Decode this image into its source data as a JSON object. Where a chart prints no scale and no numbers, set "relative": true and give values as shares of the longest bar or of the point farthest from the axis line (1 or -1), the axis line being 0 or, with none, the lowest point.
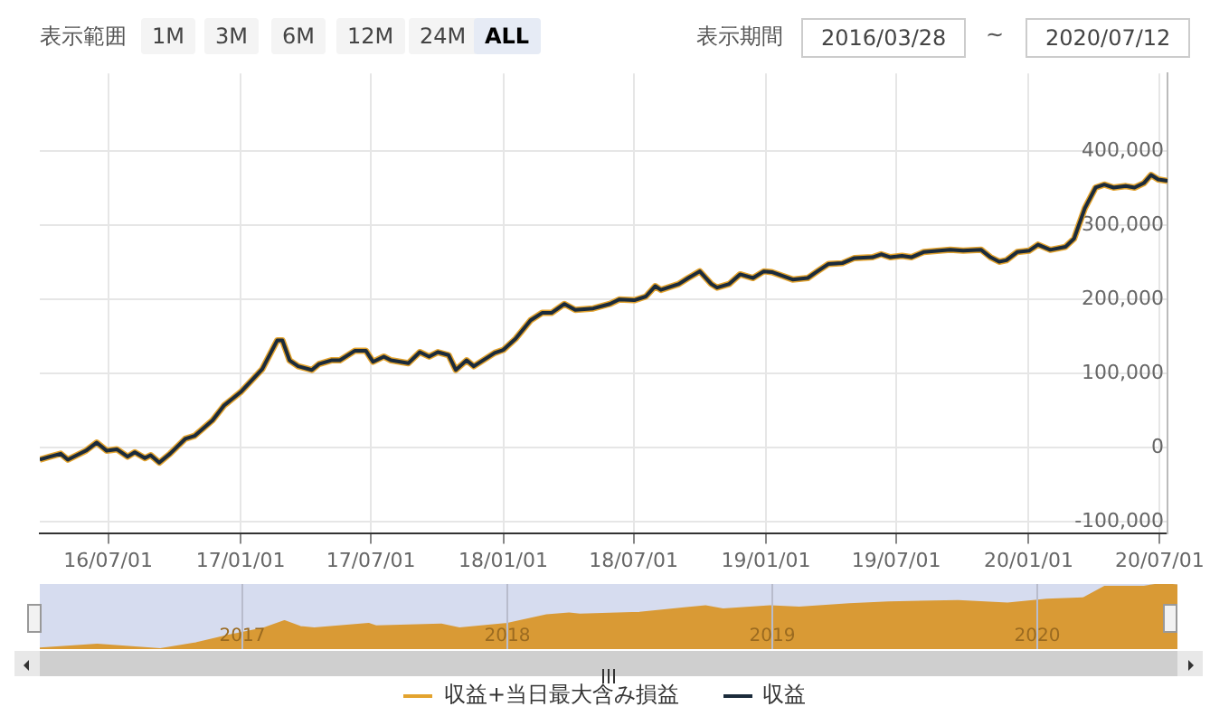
{
  "chart_data": [
    {
      "type": "line",
      "annotations": [
        "表示範囲",
        "1M",
        "3M",
        "6M",
        "12M",
        "24M",
        "ALL",
        "表示期間",
        "2016/03/28",
        "~",
        "2020/07/12"
      ],
      "x": [
        "2016-03-28",
        "2016-04-11",
        "2016-04-26",
        "2016-05-06",
        "2016-05-31",
        "2016-06-15",
        "2016-06-29",
        "2016-07-13",
        "2016-07-28",
        "2016-08-07",
        "2016-08-21",
        "2016-08-29",
        "2016-09-10",
        "2016-09-25",
        "2016-10-16",
        "2016-10-29",
        "2016-11-23",
        "2016-12-09",
        "2017-01-01",
        "2017-01-31",
        "2017-02-21",
        "2017-02-28",
        "2017-03-10",
        "2017-03-22",
        "2017-04-10",
        "2017-04-20",
        "2017-05-07",
        "2017-05-19",
        "2017-06-09",
        "2017-06-24",
        "2017-07-04",
        "2017-07-19",
        "2017-07-29",
        "2017-08-22",
        "2017-09-07",
        "2017-09-20",
        "2017-10-02",
        "2017-10-17",
        "2017-10-27",
        "2017-11-11",
        "2017-11-21",
        "2017-12-20",
        "2018-01-01",
        "2018-01-18",
        "2018-02-08",
        "2018-02-24",
        "2018-03-09",
        "2018-03-27",
        "2018-04-11",
        "2018-05-06",
        "2018-05-29",
        "2018-06-11",
        "2018-07-02",
        "2018-07-18",
        "2018-07-31",
        "2018-08-08",
        "2018-09-02",
        "2018-09-15",
        "2018-10-01",
        "2018-10-17",
        "2018-10-25",
        "2018-11-11",
        "2018-11-26",
        "2018-12-14",
        "2018-12-29",
        "2019-01-09",
        "2019-02-07",
        "2019-02-28",
        "2019-03-12",
        "2019-03-29",
        "2019-04-17",
        "2019-05-04",
        "2019-05-29",
        "2019-06-10",
        "2019-06-23",
        "2019-07-09",
        "2019-07-22",
        "2019-08-08",
        "2019-09-14",
        "2019-10-02",
        "2019-10-27",
        "2019-11-09",
        "2019-11-21",
        "2019-12-01",
        "2019-12-16",
        "2020-01-02",
        "2020-01-14",
        "2020-01-31",
        "2020-02-21",
        "2020-03-04",
        "2020-03-19",
        "2020-04-03",
        "2020-04-15",
        "2020-04-28",
        "2020-05-15",
        "2020-05-27",
        "2020-06-09",
        "2020-06-19",
        "2020-06-29",
        "2020-07-12"
      ],
      "series": [
        {
          "name": "収益+当日最大含み損益",
          "color": "#e3a32e",
          "values": [
            -16000,
            -12000,
            -8000,
            -16000,
            -4000,
            7000,
            -4000,
            -2000,
            -12000,
            -6000,
            -14000,
            -10000,
            -20000,
            -8000,
            12000,
            16000,
            37000,
            57000,
            75000,
            106000,
            145000,
            145000,
            118000,
            110000,
            105000,
            113000,
            118000,
            118000,
            131000,
            131000,
            116000,
            123000,
            118000,
            114000,
            129000,
            123000,
            129000,
            125000,
            105000,
            118000,
            110000,
            128000,
            132000,
            147000,
            172000,
            182000,
            182000,
            194000,
            186000,
            188000,
            194000,
            200000,
            199000,
            204000,
            218000,
            213000,
            221000,
            229000,
            238000,
            221000,
            216000,
            221000,
            234000,
            229000,
            238000,
            237000,
            227000,
            229000,
            237000,
            248000,
            249000,
            256000,
            257000,
            261000,
            257000,
            259000,
            257000,
            264000,
            267000,
            266000,
            267000,
            257000,
            251000,
            253000,
            264000,
            266000,
            274000,
            267000,
            271000,
            282000,
            323000,
            351000,
            355000,
            351000,
            353000,
            351000,
            357000,
            368000,
            362000,
            360000
          ]
        },
        {
          "name": "収益",
          "color": "#1b2b3b",
          "values": [
            -16000,
            -12000,
            -8000,
            -16000,
            -4000,
            7000,
            -4000,
            -2000,
            -12000,
            -6000,
            -14000,
            -10000,
            -20000,
            -8000,
            12000,
            16000,
            37000,
            57000,
            75000,
            106000,
            145000,
            145000,
            118000,
            110000,
            105000,
            113000,
            118000,
            118000,
            131000,
            131000,
            116000,
            123000,
            118000,
            114000,
            129000,
            123000,
            129000,
            125000,
            105000,
            118000,
            110000,
            128000,
            132000,
            147000,
            172000,
            182000,
            182000,
            194000,
            186000,
            188000,
            194000,
            200000,
            199000,
            204000,
            218000,
            213000,
            221000,
            229000,
            238000,
            221000,
            216000,
            221000,
            234000,
            229000,
            238000,
            237000,
            227000,
            229000,
            237000,
            248000,
            249000,
            256000,
            257000,
            261000,
            257000,
            259000,
            257000,
            264000,
            267000,
            266000,
            267000,
            257000,
            251000,
            253000,
            264000,
            266000,
            274000,
            267000,
            271000,
            282000,
            323000,
            351000,
            355000,
            351000,
            353000,
            351000,
            357000,
            368000,
            362000,
            360000
          ]
        }
      ],
      "xlim": [
        "2016-03-28",
        "2020-07-12"
      ],
      "xticks": [
        {
          "value": "2016-07-01",
          "label": "16/07/01"
        },
        {
          "value": "2017-01-01",
          "label": "17/01/01"
        },
        {
          "value": "2017-07-01",
          "label": "17/07/01"
        },
        {
          "value": "2018-01-01",
          "label": "18/01/01"
        },
        {
          "value": "2018-07-01",
          "label": "18/07/01"
        },
        {
          "value": "2019-01-01",
          "label": "19/01/01"
        },
        {
          "value": "2019-07-01",
          "label": "19/07/01"
        },
        {
          "value": "2020-01-01",
          "label": "20/01/01"
        },
        {
          "value": "2020-07-01",
          "label": "20/07/01"
        }
      ],
      "ylim": [
        -115000,
        505000
      ],
      "yticks": [
        {
          "value": -100000,
          "label": "-100,000"
        },
        0,
        {
          "value": 100000,
          "label": "100,000"
        },
        {
          "value": 200000,
          "label": "200,000"
        },
        {
          "value": 300000,
          "label": "300,000"
        },
        {
          "value": 400000,
          "label": "400,000"
        }
      ],
      "grid": true,
      "legend": "bottom",
      "marker": "none"
    },
    {
      "type": "area",
      "relative": true,
      "x": [
        "2016-03-28",
        "2016-06-15",
        "2016-09-10",
        "2016-10-29",
        "2016-12-09",
        "2017-01-31",
        "2017-02-28",
        "2017-03-22",
        "2017-04-10",
        "2017-06-24",
        "2017-07-04",
        "2017-10-02",
        "2017-10-27",
        "2018-01-01",
        "2018-02-24",
        "2018-03-27",
        "2018-04-11",
        "2018-07-02",
        "2018-10-01",
        "2018-10-25",
        "2018-12-29",
        "2019-02-07",
        "2019-04-17",
        "2019-06-10",
        "2019-09-14",
        "2019-11-21",
        "2020-01-14",
        "2020-03-04",
        "2020-04-03",
        "2020-05-27",
        "2020-06-19",
        "2020-07-12"
      ],
      "series": [
        {
          "color": "#d99a35",
          "values": [
            0.01,
            0.07,
            0,
            0.09,
            0.2,
            0.32,
            0.43,
            0.34,
            0.32,
            0.39,
            0.35,
            0.38,
            0.32,
            0.39,
            0.52,
            0.55,
            0.53,
            0.56,
            0.66,
            0.61,
            0.66,
            0.64,
            0.69,
            0.72,
            0.74,
            0.7,
            0.76,
            0.78,
            0.96,
            0.96,
            1,
            0.98
          ]
        }
      ],
      "xlim": [
        "2016-03-28",
        "2020-07-12"
      ],
      "xticks": [
        {
          "value": "2017-01-01",
          "label": "2017"
        },
        {
          "value": "2018-01-01",
          "label": "2018"
        },
        {
          "value": "2019-01-01",
          "label": "2019"
        },
        {
          "value": "2020-01-01",
          "label": "2020"
        }
      ],
      "tick_labels": "x",
      "grid": "x",
      "marker": "none"
    }
  ]
}
